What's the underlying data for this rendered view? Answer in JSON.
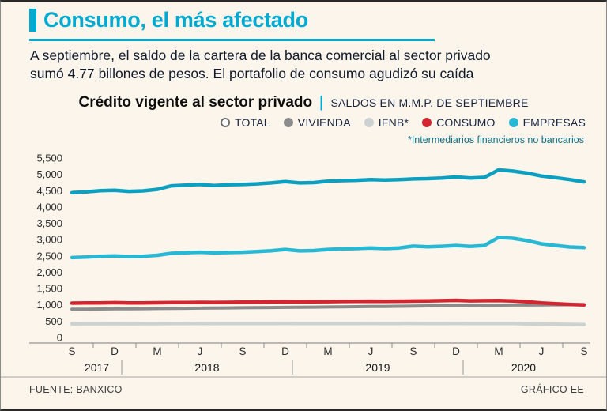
{
  "page": {
    "title": "Consumo, el más afectado",
    "subtitle_line1": "A septiembre, el saldo de la cartera de la banca comercial al sector privado",
    "subtitle_line2": "sumó 4.77 billones de pesos. El portafolio de consumo agudizó su caída",
    "footer_left": "FUENTE: BANXICO",
    "footer_right": "GRÁFICO EE"
  },
  "chart_header": {
    "title": "Crédito vigente al sector privado",
    "separator": "|",
    "units": "SALDOS EN M.M.P. DE SEPTIEMBRE",
    "footnote": "*Intermediarios financieros no bancarios"
  },
  "colors": {
    "accent": "#00a9cf",
    "total": "#0c9fc0",
    "vivienda": "#8c8c8c",
    "ifnb": "#ccd1d2",
    "consumo": "#d22730",
    "empresas": "#29b8d4",
    "text_dark": "#101a2c"
  },
  "legend": [
    {
      "label": "TOTAL",
      "color": "#ffffff",
      "border": "#6d6d6d"
    },
    {
      "label": "VIVIENDA",
      "color": "#8c8c8c"
    },
    {
      "label": "IFNB*",
      "color": "#ccd1d2"
    },
    {
      "label": "CONSUMO",
      "color": "#d22730"
    },
    {
      "label": "EMPRESAS",
      "color": "#29b8d4"
    }
  ],
  "chart_data": {
    "type": "line",
    "title": "Crédito vigente al sector privado",
    "units": "SALDOS EN M.M.P. DE SEPTIEMBRE",
    "ylim": [
      0,
      5500
    ],
    "ytick_step": 500,
    "yticks": [
      0,
      500,
      1000,
      1500,
      2000,
      2500,
      3000,
      3500,
      4000,
      4500,
      5000,
      5500
    ],
    "grid": false,
    "legend_position": "top",
    "x": {
      "description": "monthly points Sep 2017 - Sep 2020",
      "month_labels": [
        "S",
        "D",
        "M",
        "J",
        "S",
        "D",
        "M",
        "J",
        "S",
        "D",
        "M",
        "J",
        "S"
      ],
      "month_label_indices": [
        0,
        3,
        6,
        9,
        12,
        15,
        18,
        21,
        24,
        27,
        30,
        33,
        36
      ],
      "year_labels": [
        "2017",
        "2018",
        "2019",
        "2020"
      ],
      "year_boundary_indices": [
        3.5,
        15.5,
        27.5
      ]
    },
    "series": [
      {
        "name": "TOTAL",
        "color": "#0c9fc0",
        "width": 4.5,
        "values": [
          4440,
          4465,
          4500,
          4515,
          4480,
          4495,
          4540,
          4650,
          4670,
          4690,
          4660,
          4680,
          4690,
          4710,
          4740,
          4780,
          4740,
          4750,
          4790,
          4810,
          4820,
          4840,
          4830,
          4840,
          4860,
          4870,
          4890,
          4920,
          4890,
          4910,
          5140,
          5100,
          5040,
          4950,
          4900,
          4840,
          4770
        ]
      },
      {
        "name": "EMPRESAS",
        "color": "#29b8d4",
        "width": 4.5,
        "values": [
          2450,
          2465,
          2490,
          2500,
          2480,
          2490,
          2520,
          2580,
          2600,
          2615,
          2595,
          2605,
          2615,
          2635,
          2660,
          2700,
          2655,
          2665,
          2700,
          2715,
          2725,
          2745,
          2725,
          2745,
          2800,
          2780,
          2795,
          2820,
          2790,
          2820,
          3070,
          3040,
          2970,
          2870,
          2820,
          2775,
          2755
        ]
      },
      {
        "name": "CONSUMO",
        "color": "#d22730",
        "width": 4.5,
        "values": [
          1055,
          1058,
          1062,
          1068,
          1060,
          1062,
          1066,
          1070,
          1074,
          1078,
          1075,
          1078,
          1082,
          1086,
          1092,
          1100,
          1092,
          1094,
          1100,
          1104,
          1108,
          1112,
          1108,
          1112,
          1118,
          1122,
          1130,
          1138,
          1125,
          1128,
          1135,
          1120,
          1095,
          1060,
          1035,
          1015,
          1000
        ]
      },
      {
        "name": "VIVIENDA",
        "color": "#8c8c8c",
        "width": 4,
        "values": [
          865,
          868,
          872,
          876,
          878,
          882,
          886,
          890,
          894,
          898,
          902,
          906,
          910,
          914,
          918,
          924,
          926,
          930,
          935,
          940,
          944,
          949,
          953,
          958,
          963,
          968,
          973,
          979,
          982,
          986,
          992,
          995,
          997,
          1000,
          1002,
          1005,
          1008
        ]
      },
      {
        "name": "IFNB",
        "color": "#ccd1d2",
        "width": 4.5,
        "values": [
          420,
          421,
          422,
          423,
          422,
          423,
          424,
          426,
          427,
          428,
          427,
          428,
          429,
          430,
          431,
          433,
          430,
          430,
          431,
          432,
          432,
          433,
          431,
          432,
          433,
          432,
          432,
          433,
          430,
          430,
          432,
          428,
          420,
          412,
          405,
          400,
          396
        ]
      }
    ]
  }
}
